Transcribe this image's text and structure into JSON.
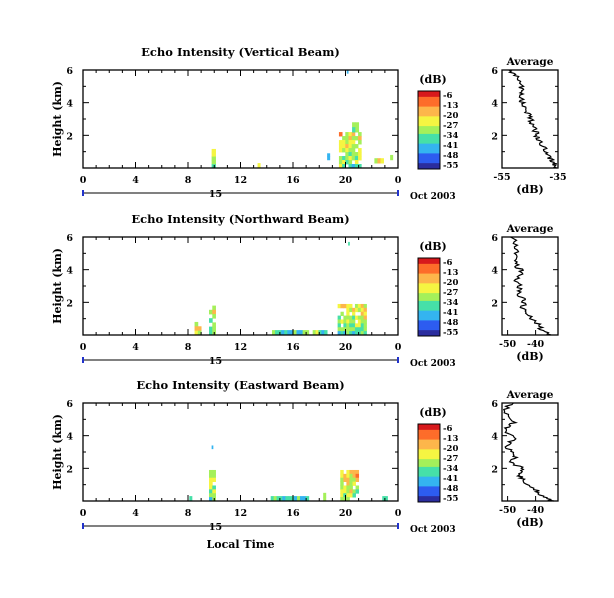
{
  "figure": {
    "xlabel": "Local Time"
  },
  "colorbar": {
    "title": "(dB)",
    "ticks": [
      "-6",
      "-13",
      "-20",
      "-27",
      "-34",
      "-41",
      "-48",
      "-55"
    ],
    "colors": [
      "#d7191c",
      "#fd6d2a",
      "#fdb64b",
      "#f5f542",
      "#a4f05a",
      "#46e0a8",
      "#34b4f0",
      "#2d5cf0",
      "#2b2d9e"
    ]
  },
  "chart_data": [
    {
      "type": "heatmap",
      "title": "Echo Intensity (Vertical Beam)",
      "ylabel": "Height (km)",
      "ylim": [
        0,
        6
      ],
      "yticks": [
        "6",
        "4",
        "2"
      ],
      "xticks": [
        "0",
        "4",
        "8",
        "12",
        "16",
        "20",
        "0"
      ],
      "xlim": [
        0,
        24
      ],
      "day_label": "15",
      "date_label": "Oct 2003",
      "echo_regions": [
        {
          "t0": 9.8,
          "t1": 10.1,
          "h0": 0,
          "h1": 1.4,
          "level": 0.35
        },
        {
          "t0": 13.3,
          "t1": 13.5,
          "h0": 0,
          "h1": 0.3,
          "level": 0.45
        },
        {
          "t0": 18.6,
          "t1": 18.8,
          "h0": 0.5,
          "h1": 0.9,
          "level": 0.15
        },
        {
          "t0": 19.5,
          "t1": 21.2,
          "h0": 0,
          "h1": 2.2,
          "level": 0.4
        },
        {
          "t0": 20.5,
          "t1": 21.0,
          "h0": 2.2,
          "h1": 2.8,
          "level": 0.35
        },
        {
          "t0": 22.2,
          "t1": 22.9,
          "h0": 0.3,
          "h1": 0.6,
          "level": 0.4
        },
        {
          "t0": 23.4,
          "t1": 23.6,
          "h0": 0.5,
          "h1": 0.8,
          "level": 0.2
        },
        {
          "t0": 20.1,
          "t1": 20.2,
          "h0": 5.8,
          "h1": 6.0,
          "level": 0.1
        }
      ],
      "average": {
        "title": "Average",
        "xlabel": "(dB)",
        "xlim": [
          -55,
          -35
        ],
        "xticks": [
          "-55",
          "-35"
        ],
        "yticks": [
          "6",
          "4",
          "2"
        ],
        "profile": [
          [
            -52,
            6.0
          ],
          [
            -50,
            5.6
          ],
          [
            -48,
            5.0
          ],
          [
            -47.5,
            4.6
          ],
          [
            -48,
            4.2
          ],
          [
            -47,
            3.8
          ],
          [
            -46,
            3.4
          ],
          [
            -45,
            3.0
          ],
          [
            -44,
            2.6
          ],
          [
            -43,
            2.2
          ],
          [
            -42,
            1.8
          ],
          [
            -40.5,
            1.4
          ],
          [
            -39,
            1.0
          ],
          [
            -38,
            0.6
          ],
          [
            -36.5,
            0.3
          ],
          [
            -35.5,
            0.0
          ]
        ]
      }
    },
    {
      "type": "heatmap",
      "title": "Echo Intensity (Northward Beam)",
      "ylabel": "Height (km)",
      "ylim": [
        0,
        6
      ],
      "yticks": [
        "6",
        "4",
        "2"
      ],
      "xticks": [
        "0",
        "4",
        "8",
        "12",
        "16",
        "20",
        "0"
      ],
      "xlim": [
        0,
        24
      ],
      "day_label": "15",
      "date_label": "Oct 2003",
      "echo_regions": [
        {
          "t0": 8.5,
          "t1": 9.0,
          "h0": 0,
          "h1": 0.8,
          "level": 0.4
        },
        {
          "t0": 9.6,
          "t1": 10.1,
          "h0": 0,
          "h1": 1.8,
          "level": 0.35
        },
        {
          "t0": 14.4,
          "t1": 17.2,
          "h0": 0,
          "h1": 0.3,
          "level": 0.1
        },
        {
          "t0": 17.5,
          "t1": 18.6,
          "h0": 0,
          "h1": 0.3,
          "level": 0.2
        },
        {
          "t0": 19.4,
          "t1": 21.6,
          "h0": 0,
          "h1": 1.9,
          "level": 0.4
        },
        {
          "t0": 20.2,
          "t1": 20.3,
          "h0": 5.5,
          "h1": 5.7,
          "level": 0.1
        }
      ],
      "average": {
        "title": "Average",
        "xlabel": "(dB)",
        "xlim": [
          -52,
          -32
        ],
        "xticks": [
          "-50",
          "-40"
        ],
        "yticks": [
          "6",
          "4",
          "2"
        ],
        "profile": [
          [
            -48,
            6.0
          ],
          [
            -47,
            5.4
          ],
          [
            -46.5,
            4.8
          ],
          [
            -47,
            4.3
          ],
          [
            -45,
            3.9
          ],
          [
            -47,
            3.4
          ],
          [
            -45.5,
            2.9
          ],
          [
            -46,
            2.5
          ],
          [
            -44,
            2.1
          ],
          [
            -44.5,
            1.6
          ],
          [
            -42,
            1.2
          ],
          [
            -40,
            0.8
          ],
          [
            -38,
            0.4
          ],
          [
            -34.5,
            0.0
          ]
        ]
      }
    },
    {
      "type": "heatmap",
      "title": "Echo Intensity (Eastward Beam)",
      "ylabel": "Height (km)",
      "ylim": [
        0,
        6
      ],
      "yticks": [
        "6",
        "4",
        "2"
      ],
      "xticks": [
        "0",
        "4",
        "8",
        "12",
        "16",
        "20",
        "0"
      ],
      "xlim": [
        0,
        24
      ],
      "day_label": "15",
      "date_label": "Oct 2003",
      "echo_regions": [
        {
          "t0": 8.1,
          "t1": 8.3,
          "h0": 0,
          "h1": 0.3,
          "level": 0.3
        },
        {
          "t0": 9.6,
          "t1": 10.1,
          "h0": 0,
          "h1": 1.9,
          "level": 0.35
        },
        {
          "t0": 9.8,
          "t1": 9.9,
          "h0": 3.2,
          "h1": 3.4,
          "level": 0.15
        },
        {
          "t0": 14.3,
          "t1": 17.2,
          "h0": 0,
          "h1": 0.3,
          "level": 0.1
        },
        {
          "t0": 18.3,
          "t1": 18.5,
          "h0": 0,
          "h1": 0.5,
          "level": 0.25
        },
        {
          "t0": 19.6,
          "t1": 21.0,
          "h0": 0,
          "h1": 1.9,
          "level": 0.45
        },
        {
          "t0": 22.8,
          "t1": 23.2,
          "h0": 0,
          "h1": 0.3,
          "level": 0.3
        }
      ],
      "average": {
        "title": "Average",
        "xlabel": "(dB)",
        "xlim": [
          -52,
          -32
        ],
        "xticks": [
          "-50",
          "-40"
        ],
        "yticks": [
          "6",
          "4",
          "2"
        ],
        "profile": [
          [
            -49,
            6.0
          ],
          [
            -51,
            5.4
          ],
          [
            -48,
            4.8
          ],
          [
            -51,
            4.4
          ],
          [
            -48,
            3.8
          ],
          [
            -50,
            3.3
          ],
          [
            -47,
            2.8
          ],
          [
            -49,
            2.4
          ],
          [
            -45,
            2.0
          ],
          [
            -46,
            1.6
          ],
          [
            -44,
            1.2
          ],
          [
            -40,
            0.7
          ],
          [
            -38,
            0.3
          ],
          [
            -33.5,
            0.0
          ]
        ]
      }
    }
  ]
}
